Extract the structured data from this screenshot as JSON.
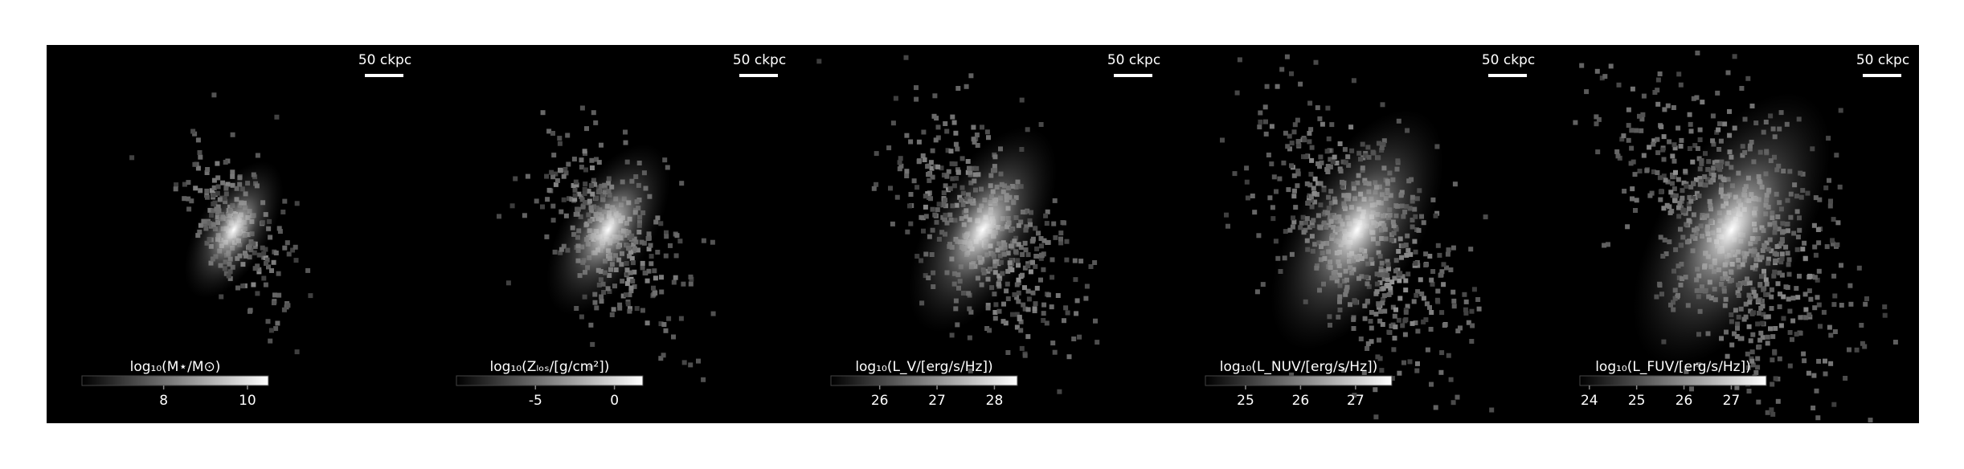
{
  "panels": [
    {
      "scale_bar": "50 ckpc",
      "colorbar": {
        "label": "log₁₀(M⋆/M⊙)",
        "lim": [
          6.05,
          10.5
        ],
        "ticks": [
          8,
          10
        ]
      }
    },
    {
      "scale_bar": "50 ckpc",
      "colorbar": {
        "label": "log₁₀(Zₗₒₛ/[g/cm²])",
        "lim": [
          -10,
          1.8
        ],
        "ticks": [
          -5,
          0
        ]
      }
    },
    {
      "scale_bar": "50 ckpc",
      "colorbar": {
        "label": "log₁₀(L_V/[erg/s/Hz])",
        "lim": [
          25.15,
          28.4
        ],
        "ticks": [
          26,
          27,
          28
        ]
      }
    },
    {
      "scale_bar": "50 ckpc",
      "colorbar": {
        "label": "log₁₀(L_NUV/[erg/s/Hz])",
        "lim": [
          24.27,
          27.66
        ],
        "ticks": [
          25,
          26,
          27
        ]
      }
    },
    {
      "scale_bar": "50 ckpc",
      "colorbar": {
        "label": "log₁₀(L_FUV/[erg/s/Hz])",
        "lim": [
          23.8,
          27.74
        ],
        "ticks": [
          24,
          25,
          26,
          27
        ]
      }
    }
  ]
}
